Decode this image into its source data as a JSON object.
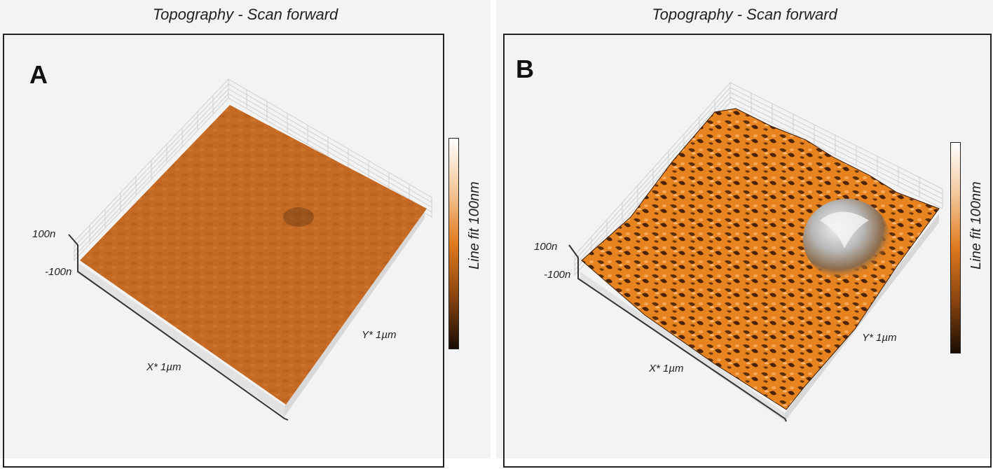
{
  "panels": [
    {
      "id": "A",
      "title": "Topography - Scan forward",
      "letter": "A",
      "z_max_label": "100n",
      "z_min_label": "-100n",
      "x_axis_label": "X* 1µm",
      "y_axis_label": "Y* 1µm",
      "colorbar_label": "Line fit 100nm"
    },
    {
      "id": "B",
      "title": "Topography - Scan forward",
      "letter": "B",
      "z_max_label": "100n",
      "z_min_label": "-100n",
      "x_axis_label": "X* 1µm",
      "y_axis_label": "Y* 1µm",
      "colorbar_label": "Line fit 100nm"
    }
  ],
  "colors": {
    "surface_base": "#c8691f",
    "surface_dark": "#5a2d0c",
    "surface_light": "#f6b06a",
    "peak_highlight": "#e8e8e8",
    "background": "#f3f3f3"
  }
}
